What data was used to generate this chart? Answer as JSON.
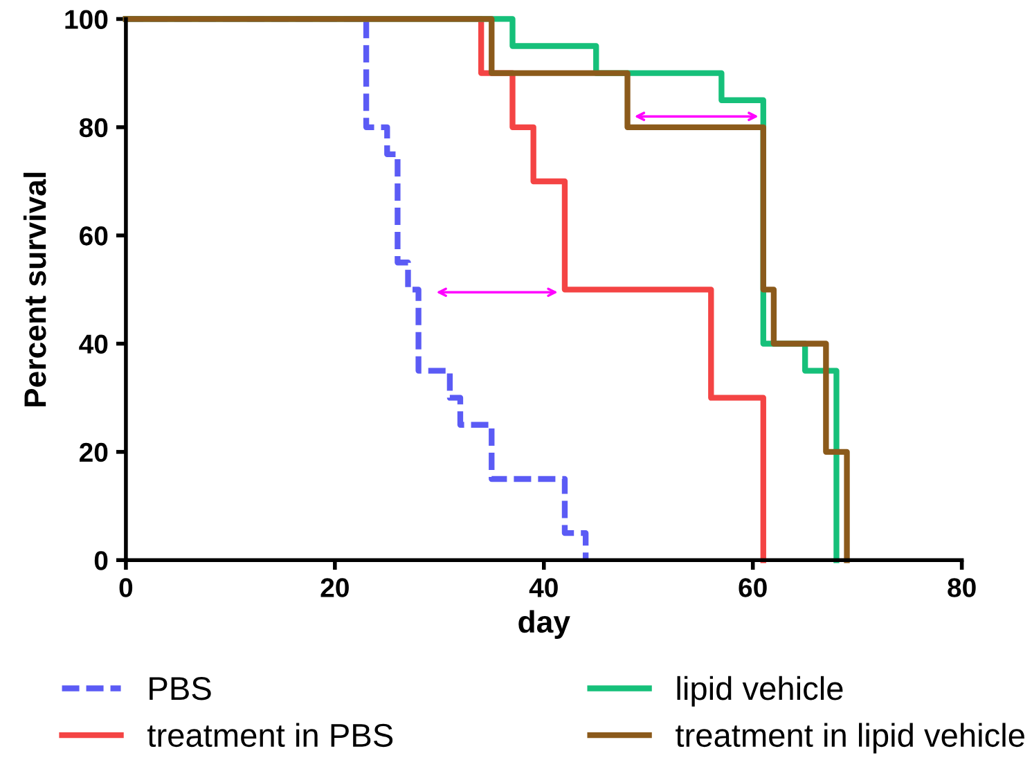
{
  "chart_data": {
    "type": "step",
    "xlabel": "day",
    "ylabel": "Percent survival",
    "xlim": [
      0,
      80
    ],
    "ylim": [
      0,
      100
    ],
    "xticks": [
      0,
      20,
      40,
      60,
      80
    ],
    "yticks": [
      0,
      20,
      40,
      60,
      80,
      100
    ],
    "grid": false,
    "legend": "bottom",
    "series": [
      {
        "name": "PBS",
        "color": "#5b5bf5",
        "line_style": "dashed",
        "x": [
          0,
          23,
          25,
          26,
          27,
          28,
          31,
          32,
          35,
          42,
          44
        ],
        "values": [
          100,
          80,
          75,
          55,
          50,
          35,
          30,
          25,
          15,
          5,
          0
        ]
      },
      {
        "name": "treatment in PBS",
        "color": "#f44444",
        "line_style": "solid",
        "x": [
          0,
          34,
          37,
          39,
          42,
          56,
          61
        ],
        "values": [
          100,
          90,
          80,
          70,
          50,
          30,
          0
        ]
      },
      {
        "name": "lipid vehicle",
        "color": "#16c07a",
        "line_style": "solid",
        "x": [
          0,
          37,
          45,
          57,
          61,
          65,
          68
        ],
        "values": [
          100,
          95,
          90,
          85,
          40,
          35,
          0
        ]
      },
      {
        "name": "treatment in lipid vehicle",
        "color": "#8b5a1b",
        "line_style": "solid",
        "x": [
          0,
          35,
          48,
          61,
          62,
          67,
          69
        ],
        "values": [
          100,
          90,
          80,
          50,
          40,
          20,
          0
        ]
      }
    ]
  }
}
